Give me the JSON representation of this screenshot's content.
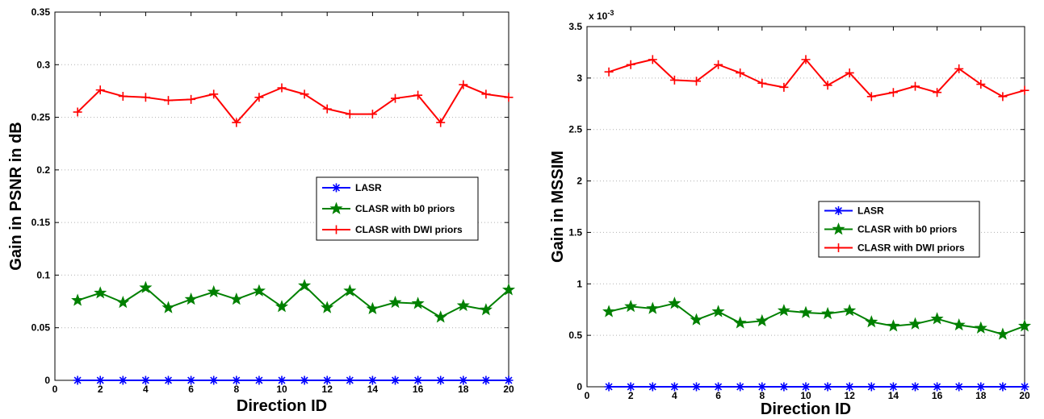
{
  "chart_data": [
    {
      "type": "line",
      "title": "",
      "xlabel": "Direction ID",
      "ylabel": "Gain in PSNR in dB",
      "xlim": [
        0,
        20
      ],
      "ylim": [
        0,
        0.35
      ],
      "x_ticks": [
        "0",
        "2",
        "4",
        "6",
        "8",
        "10",
        "12",
        "14",
        "16",
        "18",
        "20"
      ],
      "y_ticks": [
        "0",
        "0.05",
        "0.1",
        "0.15",
        "0.2",
        "0.25",
        "0.3",
        "0.35"
      ],
      "y_exponent_label": "",
      "grid": "horizontal dotted",
      "legend_position": "right-middle",
      "x": [
        1,
        2,
        3,
        4,
        5,
        6,
        7,
        8,
        9,
        10,
        11,
        12,
        13,
        14,
        15,
        16,
        17,
        18,
        19,
        20
      ],
      "series": [
        {
          "name": "LASR",
          "color": "#0000ff",
          "marker": "asterisk",
          "values": [
            0,
            0,
            0,
            0,
            0,
            0,
            0,
            0,
            0,
            0,
            0,
            0,
            0,
            0,
            0,
            0,
            0,
            0,
            0,
            0
          ]
        },
        {
          "name": "CLASR with b0 priors",
          "color": "#008000",
          "marker": "star",
          "values": [
            0.076,
            0.083,
            0.074,
            0.088,
            0.069,
            0.077,
            0.084,
            0.077,
            0.085,
            0.07,
            0.09,
            0.069,
            0.085,
            0.068,
            0.074,
            0.073,
            0.06,
            0.071,
            0.067,
            0.086
          ]
        },
        {
          "name": "CLASR with DWI priors",
          "color": "#ff0000",
          "marker": "plus",
          "values": [
            0.255,
            0.276,
            0.27,
            0.269,
            0.266,
            0.267,
            0.272,
            0.245,
            0.269,
            0.278,
            0.272,
            0.258,
            0.253,
            0.253,
            0.268,
            0.271,
            0.245,
            0.281,
            0.272,
            0.269
          ]
        }
      ]
    },
    {
      "type": "line",
      "title": "",
      "xlabel": "Direction ID",
      "ylabel": "Gain in MSSIM",
      "xlim": [
        0,
        20
      ],
      "ylim": [
        0,
        3.5
      ],
      "x_ticks": [
        "0",
        "2",
        "4",
        "6",
        "8",
        "10",
        "12",
        "14",
        "16",
        "18",
        "20"
      ],
      "y_ticks": [
        "0",
        "0.5",
        "1",
        "1.5",
        "2",
        "2.5",
        "3",
        "3.5"
      ],
      "y_exponent_label": "x 10",
      "y_exponent_power": "-3",
      "grid": "horizontal dotted",
      "legend_position": "right-middle",
      "x": [
        1,
        2,
        3,
        4,
        5,
        6,
        7,
        8,
        9,
        10,
        11,
        12,
        13,
        14,
        15,
        16,
        17,
        18,
        19,
        20
      ],
      "series": [
        {
          "name": "LASR",
          "color": "#0000ff",
          "marker": "asterisk",
          "values": [
            0,
            0,
            0,
            0,
            0,
            0,
            0,
            0,
            0,
            0,
            0,
            0,
            0,
            0,
            0,
            0,
            0,
            0,
            0,
            0
          ]
        },
        {
          "name": "CLASR with b0 priors",
          "color": "#008000",
          "marker": "star",
          "values": [
            0.73,
            0.78,
            0.76,
            0.81,
            0.65,
            0.73,
            0.62,
            0.64,
            0.74,
            0.72,
            0.71,
            0.74,
            0.63,
            0.59,
            0.61,
            0.66,
            0.6,
            0.57,
            0.51,
            0.59
          ]
        },
        {
          "name": "CLASR with DWI priors",
          "color": "#ff0000",
          "marker": "plus",
          "values": [
            3.06,
            3.13,
            3.18,
            2.98,
            2.97,
            3.13,
            3.05,
            2.95,
            2.91,
            3.18,
            2.93,
            3.05,
            2.82,
            2.86,
            2.92,
            2.86,
            3.09,
            2.94,
            2.82,
            2.88
          ]
        }
      ]
    }
  ]
}
